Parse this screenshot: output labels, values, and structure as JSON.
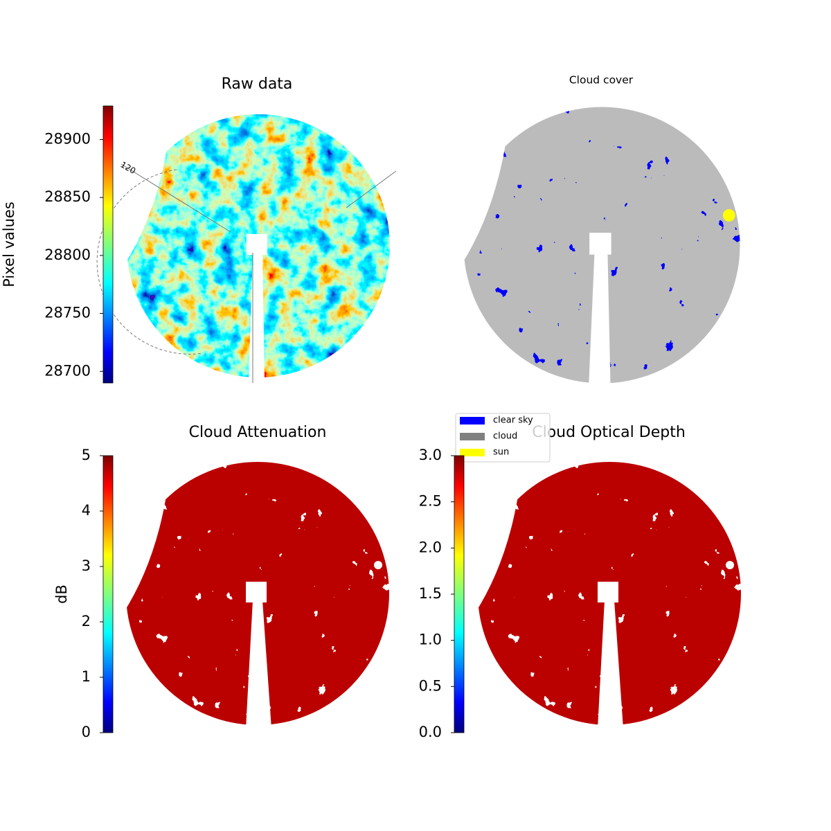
{
  "chart_data": [
    {
      "type": "image",
      "title": "Raw data",
      "colormap": "jet",
      "colorbar_label": "Pixel values",
      "ylim": [
        28690,
        28929
      ],
      "yticks": [
        28700,
        28750,
        28800,
        28850,
        28900
      ],
      "annotations": [
        "120"
      ]
    },
    {
      "type": "image",
      "title": "Cloud cover",
      "legend": [
        {
          "name": "clear sky",
          "color": "#0000ff"
        },
        {
          "name": "cloud",
          "color": "#808080"
        },
        {
          "name": "sun",
          "color": "#ffff00"
        }
      ]
    },
    {
      "type": "image",
      "title": "Cloud Attenuation",
      "colormap": "jet",
      "colorbar_label": "dB",
      "ylim": [
        0,
        5
      ],
      "yticks": [
        0,
        1,
        2,
        3,
        4,
        5
      ]
    },
    {
      "type": "image",
      "title": "Cloud Optical Depth",
      "colormap": "jet",
      "ylim": [
        0,
        3
      ],
      "yticks": [
        {
          "value": 0,
          "label": "0.0"
        },
        {
          "value": 0.5,
          "label": "0.5"
        },
        {
          "value": 1,
          "label": "1.0"
        },
        {
          "value": 1.5,
          "label": "1.5"
        },
        {
          "value": 2,
          "label": "2.0"
        },
        {
          "value": 2.5,
          "label": "2.5"
        },
        {
          "value": 3,
          "label": "3.0"
        }
      ]
    }
  ]
}
